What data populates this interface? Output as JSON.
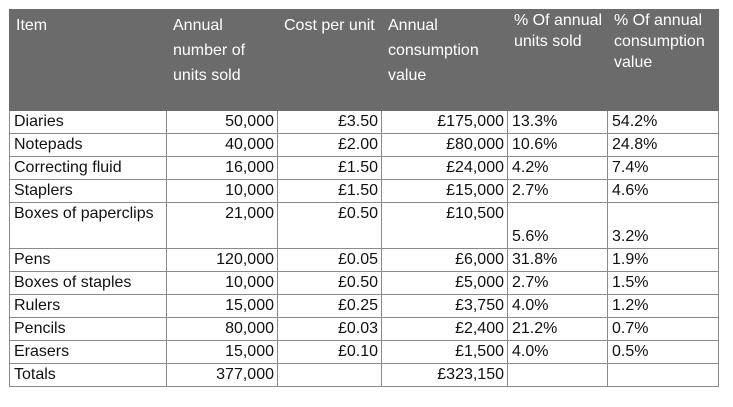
{
  "headers": [
    "Item",
    "Annual number of units sold",
    "Cost per unit",
    "Annual consumption value",
    "% Of annual units sold",
    "% Of annual consumption value"
  ],
  "rows": [
    {
      "item": "Diaries",
      "units": "50,000",
      "cost": "£3.50",
      "value": "£175,000",
      "pct_units": "13.3%",
      "pct_value": "54.2%"
    },
    {
      "item": "Notepads",
      "units": "40,000",
      "cost": "£2.00",
      "value": "£80,000",
      "pct_units": "10.6%",
      "pct_value": "24.8%"
    },
    {
      "item": "Correcting fluid",
      "units": "16,000",
      "cost": "£1.50",
      "value": "£24,000",
      "pct_units": "4.2%",
      "pct_value": "7.4%"
    },
    {
      "item": "Staplers",
      "units": "10,000",
      "cost": "£1.50",
      "value": "£15,000",
      "pct_units": "2.7%",
      "pct_value": "4.6%"
    },
    {
      "item": "Boxes of paperclips",
      "units": "21,000",
      "cost": "£0.50",
      "value": "£10,500",
      "pct_units": "5.6%",
      "pct_value": "3.2%"
    },
    {
      "item": "Pens",
      "units": "120,000",
      "cost": "£0.05",
      "value": "£6,000",
      "pct_units": "31.8%",
      "pct_value": "1.9%"
    },
    {
      "item": "Boxes of staples",
      "units": "10,000",
      "cost": "£0.50",
      "value": "£5,000",
      "pct_units": "2.7%",
      "pct_value": "1.5%"
    },
    {
      "item": "Rulers",
      "units": "15,000",
      "cost": "£0.25",
      "value": "£3,750",
      "pct_units": "4.0%",
      "pct_value": "1.2%"
    },
    {
      "item": "Pencils",
      "units": "80,000",
      "cost": "£0.03",
      "value": "£2,400",
      "pct_units": "21.2%",
      "pct_value": "0.7%"
    },
    {
      "item": "Erasers",
      "units": "15,000",
      "cost": "£0.10",
      "value": "£1,500",
      "pct_units": "4.0%",
      "pct_value": "0.5%"
    }
  ],
  "totals": {
    "item": "Totals",
    "units": "377,000",
    "cost": "",
    "value": "£323,150",
    "pct_units": "",
    "pct_value": ""
  }
}
